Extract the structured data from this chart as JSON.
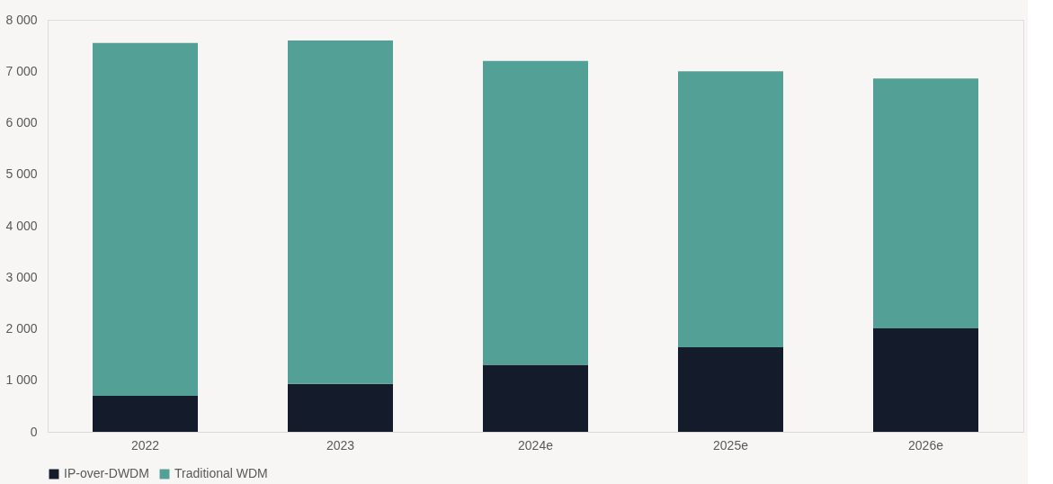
{
  "chart_data": {
    "type": "bar",
    "stacked": true,
    "categories": [
      "2022",
      "2023",
      "2024e",
      "2025e",
      "2026e"
    ],
    "series": [
      {
        "name": "IP-over-DWDM",
        "color": "#141c2b",
        "values": [
          700,
          930,
          1300,
          1640,
          2010
        ]
      },
      {
        "name": "Traditional WDM",
        "color": "#53a096",
        "values": [
          6850,
          6670,
          5900,
          5360,
          4850
        ]
      }
    ],
    "ylim": [
      0,
      8000
    ],
    "yticks": [
      {
        "value": 0,
        "label": "0"
      },
      {
        "value": 1000,
        "label": "1 000"
      },
      {
        "value": 2000,
        "label": "2 000"
      },
      {
        "value": 3000,
        "label": "3 000"
      },
      {
        "value": 4000,
        "label": "4 000"
      },
      {
        "value": 5000,
        "label": "5 000"
      },
      {
        "value": 6000,
        "label": "6 000"
      },
      {
        "value": 7000,
        "label": "7 000"
      },
      {
        "value": 8000,
        "label": "8 000"
      }
    ],
    "grid": false,
    "legend": "bottom"
  }
}
